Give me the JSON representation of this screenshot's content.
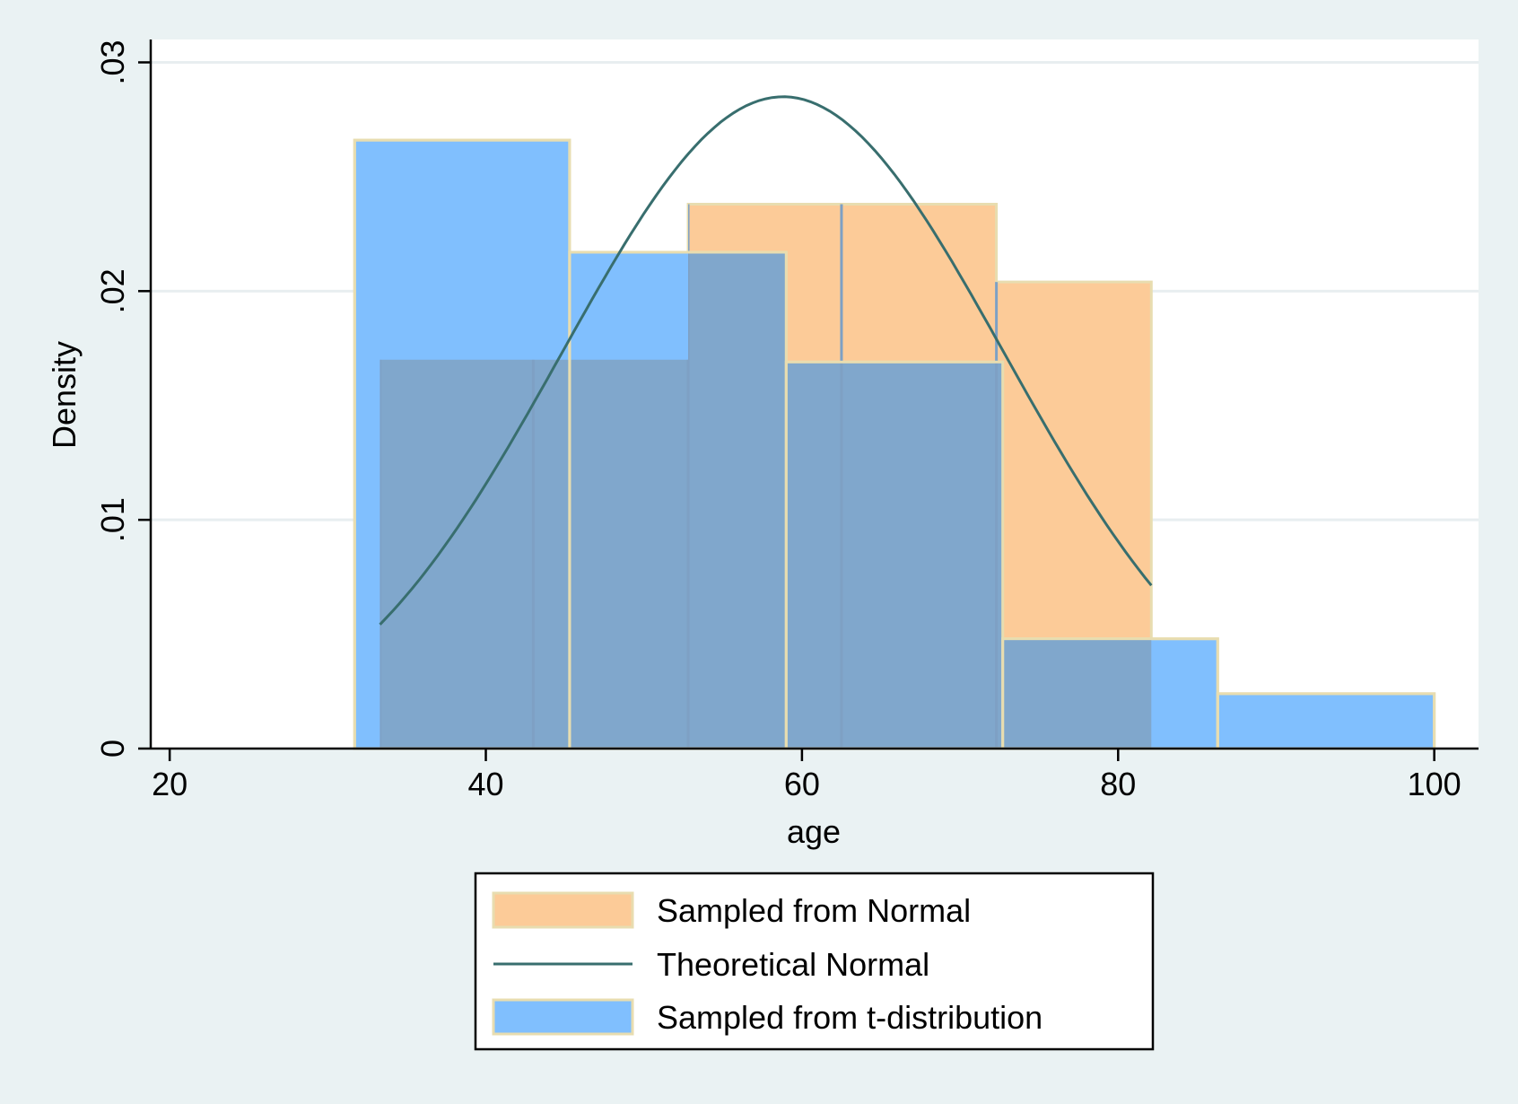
{
  "chart_data": {
    "type": "histogram",
    "xlabel": "age",
    "ylabel": "Density",
    "xlim": [
      18.8,
      102.8
    ],
    "ylim": [
      0,
      0.031
    ],
    "x_ticks": [
      20,
      40,
      60,
      80,
      100
    ],
    "x_tick_labels": [
      "20",
      "40",
      "60",
      "80",
      "100"
    ],
    "y_ticks": [
      0,
      0.01,
      0.02,
      0.03
    ],
    "y_tick_labels": [
      "0",
      ".01",
      ".02",
      ".03"
    ],
    "grid": "horizontal",
    "legend_position": "bottom",
    "colors": {
      "normal_fill": "#fccb98",
      "t_fill": "#80bffe",
      "overlap_fill": "#80a7cc",
      "bar_stroke": "#e8ddb0",
      "curve": "#386e6e",
      "curve_overlap": "#2a70a8",
      "background": "#eaf2f3",
      "plot_bg": "#ffffff",
      "grid": "#e8eef0"
    },
    "series": [
      {
        "name": "Sampled from Normal",
        "kind": "histogram",
        "bins": [
          {
            "x0": 33.3,
            "x1": 43.0,
            "density": 0.017
          },
          {
            "x0": 43.0,
            "x1": 52.8,
            "density": 0.017
          },
          {
            "x0": 52.8,
            "x1": 62.5,
            "density": 0.0238
          },
          {
            "x0": 62.5,
            "x1": 72.3,
            "density": 0.0238
          },
          {
            "x0": 72.3,
            "x1": 82.1,
            "density": 0.0204
          }
        ]
      },
      {
        "name": "Theoretical Normal",
        "kind": "line",
        "mean": 58.8,
        "sd": 14.0,
        "x_range": [
          33.3,
          82.1
        ]
      },
      {
        "name": "Sampled from t-distribution",
        "kind": "histogram",
        "bins": [
          {
            "x0": 31.7,
            "x1": 45.3,
            "density": 0.0266
          },
          {
            "x0": 45.3,
            "x1": 59.0,
            "density": 0.0217
          },
          {
            "x0": 59.0,
            "x1": 72.7,
            "density": 0.0169
          },
          {
            "x0": 72.7,
            "x1": 86.3,
            "density": 0.0048
          },
          {
            "x0": 86.3,
            "x1": 100.0,
            "density": 0.0024
          }
        ]
      }
    ]
  }
}
